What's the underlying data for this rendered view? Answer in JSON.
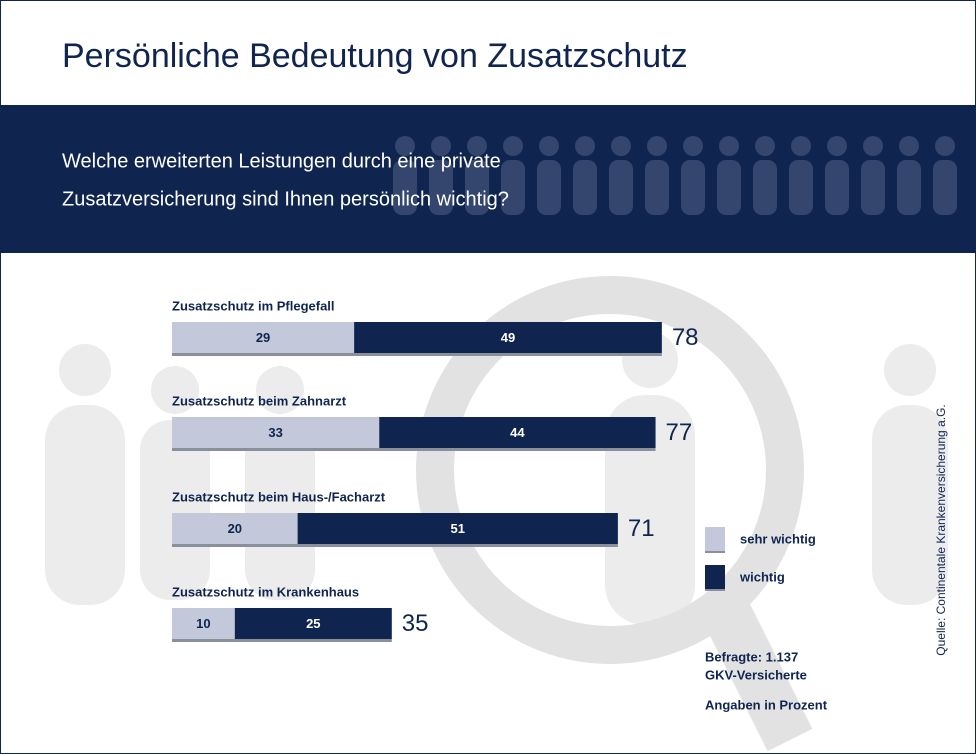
{
  "chart_data": {
    "type": "bar",
    "orientation": "horizontal",
    "stacked": true,
    "title": "Persönliche Bedeutung von Zusatzschutz",
    "question": [
      "Welche erweiterten Leistungen durch eine private",
      "Zusatzversicherung sind Ihnen persönlich wichtig?"
    ],
    "categories": [
      "Zusatzschutz im Pflegefall",
      "Zusatzschutz beim Zahnarzt",
      "Zusatzschutz beim Haus-/Facharzt",
      "Zusatzschutz im Krankenhaus"
    ],
    "series": [
      {
        "name": "sehr wichtig",
        "color": "#c3c8da",
        "values": [
          29,
          33,
          20,
          10
        ]
      },
      {
        "name": "wichtig",
        "color": "#0f2550",
        "values": [
          49,
          44,
          51,
          25
        ]
      }
    ],
    "totals": [
      78,
      77,
      71,
      35
    ],
    "notes": [
      "Befragte: 1.137",
      "GKV-Versicherte",
      "Angaben in Prozent"
    ],
    "source": "Quelle: Continentale Krankenversicherung a.G."
  }
}
